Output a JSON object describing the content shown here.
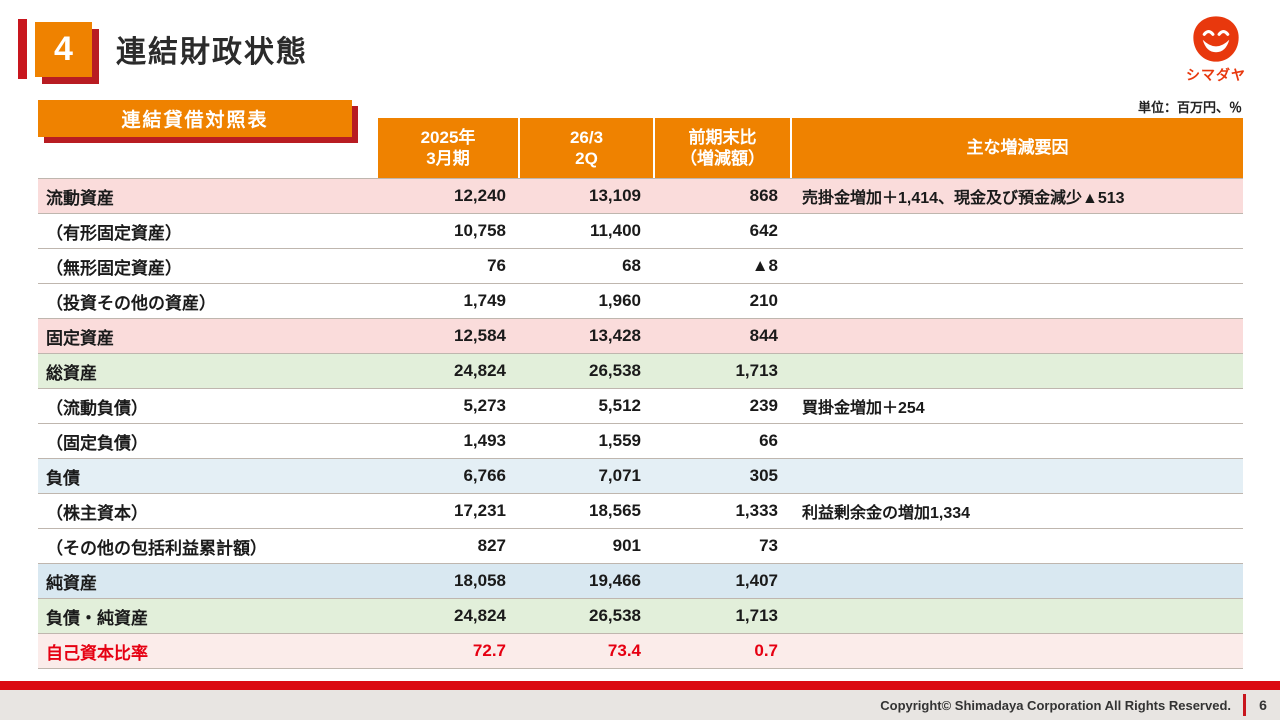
{
  "header": {
    "number": "4",
    "title": "連結財政状態",
    "logo_text": "シマダヤ"
  },
  "badge": "連結貸借対照表",
  "unit_label": "単位：百万円、％",
  "colors": {
    "accent_orange": "#EF8200",
    "accent_red": "#C8161E",
    "shadow_red": "#B81C22",
    "row_pink": "#FADCDB",
    "row_green": "#E2EFDA",
    "row_blue_liabilities": "#E4EFF5",
    "row_blue_net_assets": "#D9E8F1",
    "row_ratio": "#FBECEA",
    "ratio_text_red": "#E60012",
    "footer_bar_red": "#DB0A12"
  },
  "table": {
    "headers": [
      {
        "l1": "2025年",
        "l2": "3月期"
      },
      {
        "l1": "26/3",
        "l2": "2Q"
      },
      {
        "l1": "前期末比",
        "l2": "（増減額）"
      },
      {
        "l1": "主な増減要因",
        "l2": ""
      }
    ],
    "rows": [
      {
        "label": "流動資産",
        "v1": "12,240",
        "v2": "13,109",
        "diff": "868",
        "note": "売掛金増加＋1,414、現金及び預金減少▲513",
        "style": "pink"
      },
      {
        "label": "（有形固定資産）",
        "v1": "10,758",
        "v2": "11,400",
        "diff": "642",
        "note": "",
        "style": "white"
      },
      {
        "label": "（無形固定資産）",
        "v1": "76",
        "v2": "68",
        "diff": "▲8",
        "note": "",
        "style": "white"
      },
      {
        "label": "（投資その他の資産）",
        "v1": "1,749",
        "v2": "1,960",
        "diff": "210",
        "note": "",
        "style": "white"
      },
      {
        "label": "固定資産",
        "v1": "12,584",
        "v2": "13,428",
        "diff": "844",
        "note": "",
        "style": "pink"
      },
      {
        "label": "総資産",
        "v1": "24,824",
        "v2": "26,538",
        "diff": "1,713",
        "note": "",
        "style": "green"
      },
      {
        "label": "（流動負債）",
        "v1": "5,273",
        "v2": "5,512",
        "diff": "239",
        "note": "買掛金増加＋254",
        "style": "white"
      },
      {
        "label": "（固定負債）",
        "v1": "1,493",
        "v2": "1,559",
        "diff": "66",
        "note": "",
        "style": "white"
      },
      {
        "label": "負債",
        "v1": "6,766",
        "v2": "7,071",
        "diff": "305",
        "note": "",
        "style": "blue"
      },
      {
        "label": "（株主資本）",
        "v1": "17,231",
        "v2": "18,565",
        "diff": "1,333",
        "note": "利益剰余金の増加1,334",
        "style": "white"
      },
      {
        "label": "（その他の包括利益累計額）",
        "v1": "827",
        "v2": "901",
        "diff": "73",
        "note": "",
        "style": "white"
      },
      {
        "label": "純資産",
        "v1": "18,058",
        "v2": "19,466",
        "diff": "1,407",
        "note": "",
        "style": "blue2"
      },
      {
        "label": "負債・純資産",
        "v1": "24,824",
        "v2": "26,538",
        "diff": "1,713",
        "note": "",
        "style": "green"
      },
      {
        "label": "自己資本比率",
        "v1": "72.7",
        "v2": "73.4",
        "diff": "0.7",
        "note": "",
        "style": "ratio"
      }
    ]
  },
  "footer": {
    "copyright": "Copyright© Shimadaya Corporation All Rights Reserved.",
    "page": "6"
  }
}
